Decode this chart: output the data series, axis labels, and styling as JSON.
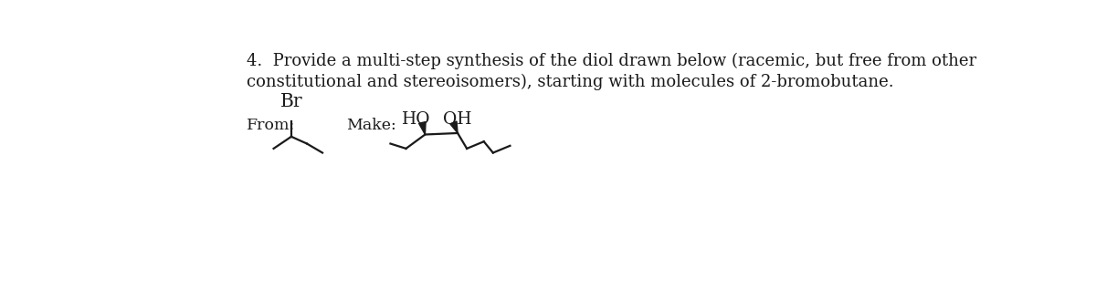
{
  "background_color": "#ffffff",
  "title_line1": "4.  Provide a multi-step synthesis of the diol drawn below (racemic, but free from other",
  "title_line2": "constitutional and stereoisomers), starting with molecules of 2-bromobutane.",
  "label_from": "From:",
  "label_make": "Make:",
  "label_br": "Br",
  "label_ho": "HO",
  "label_oh": "OH",
  "text_color": "#1a1a1a",
  "line_color": "#1a1a1a",
  "font_size_title": 13.0,
  "font_size_label": 12.5,
  "font_size_atom": 13.5
}
